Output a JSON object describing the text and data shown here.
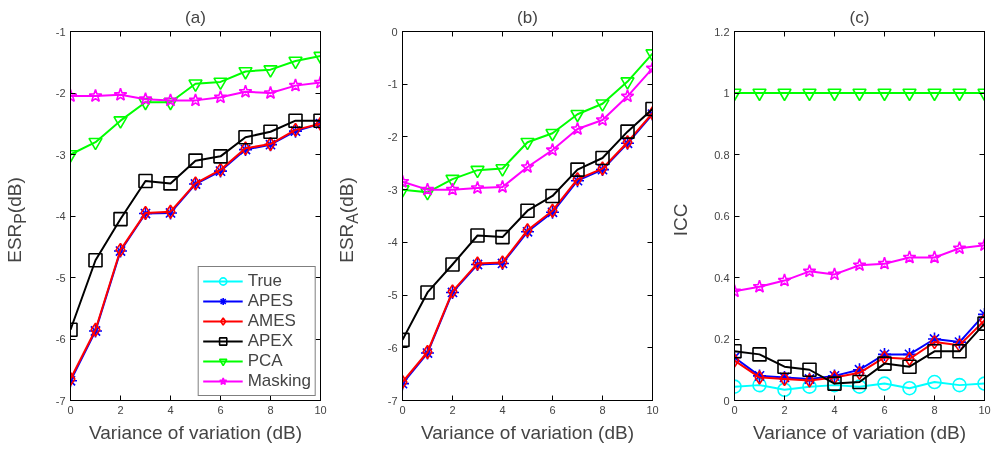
{
  "chart_data": [
    {
      "type": "line",
      "title": "(a)",
      "xlabel": "Variance of variation (dB)",
      "ylabel": "ESR$_{P}$(dB)",
      "x": [
        0,
        1,
        2,
        3,
        4,
        5,
        6,
        7,
        8,
        9,
        10
      ],
      "xlim": [
        0,
        10
      ],
      "xticks": [
        0,
        2,
        4,
        6,
        8,
        10
      ],
      "ylim": [
        -7,
        -1
      ],
      "yticks": [
        -7,
        -6,
        -5,
        -4,
        -3,
        -2,
        -1
      ],
      "grid": false,
      "legend": "bottom right",
      "series": [
        {
          "name": "True",
          "color": "#00ffff",
          "marker": "circle",
          "values": [
            null,
            null,
            null,
            null,
            null,
            null,
            null,
            null,
            null,
            null,
            null
          ]
        },
        {
          "name": "APES",
          "color": "#0000ff",
          "marker": "cross",
          "values": [
            -6.68,
            -5.87,
            -4.57,
            -3.96,
            -3.95,
            -3.48,
            -3.27,
            -2.92,
            -2.84,
            -2.62,
            -2.5
          ]
        },
        {
          "name": "AMES",
          "color": "#ff0000",
          "marker": "diamond",
          "values": [
            -6.65,
            -5.85,
            -4.55,
            -3.95,
            -3.93,
            -3.47,
            -3.25,
            -2.9,
            -2.83,
            -2.6,
            -2.5
          ]
        },
        {
          "name": "APEX",
          "color": "#000000",
          "marker": "square",
          "values": [
            -5.85,
            -4.72,
            -4.05,
            -3.43,
            -3.47,
            -3.1,
            -3.03,
            -2.72,
            -2.63,
            -2.45,
            -2.45
          ]
        },
        {
          "name": "PCA",
          "color": "#00ff00",
          "marker": "triangle",
          "values": [
            -3.0,
            -2.8,
            -2.45,
            -2.15,
            -2.15,
            -1.85,
            -1.82,
            -1.65,
            -1.62,
            -1.48,
            -1.4
          ]
        },
        {
          "name": "Masking",
          "color": "#ff00ff",
          "marker": "star",
          "values": [
            -2.05,
            -2.05,
            -2.03,
            -2.1,
            -2.12,
            -2.12,
            -2.07,
            -1.98,
            -2.0,
            -1.88,
            -1.83
          ]
        }
      ]
    },
    {
      "type": "line",
      "title": "(b)",
      "xlabel": "Variance of variation (dB)",
      "ylabel": "ESR$_{A}$(dB)",
      "x": [
        0,
        1,
        2,
        3,
        4,
        5,
        6,
        7,
        8,
        9,
        10
      ],
      "xlim": [
        0,
        10
      ],
      "xticks": [
        0,
        2,
        4,
        6,
        8,
        10
      ],
      "ylim": [
        -7,
        0
      ],
      "yticks": [
        -7,
        -6,
        -5,
        -4,
        -3,
        -2,
        -1,
        0
      ],
      "grid": false,
      "series": [
        {
          "color": "#0000ff",
          "marker": "cross",
          "values": [
            -6.68,
            -6.1,
            -4.95,
            -4.42,
            -4.4,
            -3.8,
            -3.43,
            -2.83,
            -2.62,
            -2.12,
            -1.57
          ]
        },
        {
          "color": "#ff0000",
          "marker": "diamond",
          "values": [
            -6.65,
            -6.08,
            -4.93,
            -4.4,
            -4.38,
            -3.77,
            -3.4,
            -2.8,
            -2.6,
            -2.1,
            -1.55
          ]
        },
        {
          "color": "#000000",
          "marker": "square",
          "values": [
            -5.85,
            -4.95,
            -4.42,
            -3.87,
            -3.9,
            -3.4,
            -3.12,
            -2.62,
            -2.4,
            -1.9,
            -1.47
          ]
        },
        {
          "color": "#00ff00",
          "marker": "triangle",
          "values": [
            -3.0,
            -3.05,
            -2.8,
            -2.63,
            -2.6,
            -2.1,
            -1.93,
            -1.57,
            -1.37,
            -0.95,
            -0.42
          ]
        },
        {
          "color": "#ff00ff",
          "marker": "star",
          "values": [
            -2.85,
            -3.0,
            -3.0,
            -2.97,
            -2.95,
            -2.57,
            -2.25,
            -1.85,
            -1.68,
            -1.23,
            -0.7
          ]
        }
      ]
    },
    {
      "type": "line",
      "title": "(c)",
      "xlabel": "Variance of variation (dB)",
      "ylabel": "ICC",
      "x": [
        0,
        1,
        2,
        3,
        4,
        5,
        6,
        7,
        8,
        9,
        10
      ],
      "xlim": [
        0,
        10
      ],
      "xticks": [
        0,
        2,
        4,
        6,
        8,
        10
      ],
      "ylim": [
        0,
        1.2
      ],
      "yticks": [
        0,
        0.2,
        0.4,
        0.6,
        0.8,
        1,
        1.2
      ],
      "grid": false,
      "series": [
        {
          "color": "#00ffff",
          "marker": "circle",
          "values": [
            0.045,
            0.05,
            0.035,
            0.045,
            0.05,
            0.045,
            0.055,
            0.04,
            0.06,
            0.05,
            0.055
          ]
        },
        {
          "color": "#0000ff",
          "marker": "cross",
          "values": [
            0.14,
            0.08,
            0.075,
            0.07,
            0.08,
            0.1,
            0.15,
            0.15,
            0.2,
            0.19,
            0.28
          ]
        },
        {
          "color": "#ff0000",
          "marker": "diamond",
          "values": [
            0.13,
            0.075,
            0.07,
            0.065,
            0.075,
            0.09,
            0.14,
            0.135,
            0.19,
            0.18,
            0.26
          ]
        },
        {
          "color": "#000000",
          "marker": "square",
          "values": [
            0.16,
            0.15,
            0.11,
            0.1,
            0.055,
            0.06,
            0.12,
            0.11,
            0.16,
            0.16,
            0.25
          ]
        },
        {
          "color": "#00ff00",
          "marker": "triangle",
          "values": [
            1,
            1,
            1,
            1,
            1,
            1,
            1,
            1,
            1,
            1,
            1
          ]
        },
        {
          "color": "#ff00ff",
          "marker": "star",
          "values": [
            0.355,
            0.37,
            0.39,
            0.42,
            0.41,
            0.44,
            0.445,
            0.465,
            0.465,
            0.495,
            0.505
          ]
        }
      ]
    }
  ]
}
